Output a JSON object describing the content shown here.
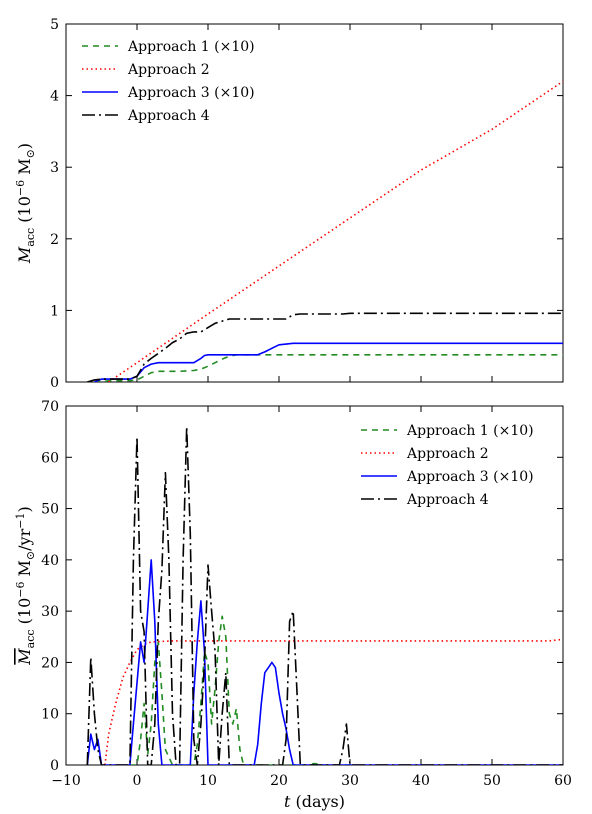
{
  "chart_data": [
    {
      "type": "line",
      "panel": "top",
      "ylabel": "M_acc (10^-6 M_sun)",
      "ylabel_parts": {
        "sym": "M",
        "sub": "acc",
        "open": " (10",
        "sup": "−6",
        "unit": " M",
        "sun": "⊙",
        "close": ")"
      },
      "xlim": [
        -10,
        60
      ],
      "ylim": [
        0,
        5
      ],
      "yticks": [
        "0",
        "1",
        "2",
        "3",
        "4",
        "5"
      ],
      "grid": false,
      "legend_position": "upper-left",
      "series": [
        {
          "name": "Approach 1 (×10)",
          "color": "#228b22",
          "dash": "dashed",
          "x": [
            -6,
            -5,
            -4,
            -3,
            -2,
            -1,
            0,
            1,
            2,
            3,
            4,
            6,
            8,
            9,
            10,
            11,
            12,
            13,
            14,
            15,
            20,
            30,
            40,
            50,
            60
          ],
          "y": [
            0.0,
            0.01,
            0.015,
            0.02,
            0.02,
            0.02,
            0.03,
            0.08,
            0.13,
            0.15,
            0.15,
            0.15,
            0.16,
            0.18,
            0.22,
            0.27,
            0.32,
            0.36,
            0.38,
            0.38,
            0.38,
            0.38,
            0.38,
            0.38,
            0.38
          ]
        },
        {
          "name": "Approach 2",
          "color": "#ff0000",
          "dash": "dotted",
          "x": [
            -4,
            0,
            10,
            20,
            30,
            40,
            50,
            60
          ],
          "y": [
            0.0,
            0.27,
            0.95,
            1.62,
            2.29,
            2.96,
            3.53,
            4.2
          ]
        },
        {
          "name": "Approach 3 (×10)",
          "color": "#0000ff",
          "dash": "solid",
          "x": [
            -6,
            -5,
            -1,
            0,
            1,
            2,
            3,
            8,
            9,
            9.5,
            10,
            17,
            18,
            19,
            20,
            22,
            60
          ],
          "y": [
            0.0,
            0.04,
            0.04,
            0.08,
            0.2,
            0.25,
            0.27,
            0.27,
            0.33,
            0.37,
            0.38,
            0.38,
            0.42,
            0.47,
            0.52,
            0.54,
            0.54
          ]
        },
        {
          "name": "Approach 4",
          "color": "#000000",
          "dash": "longdash",
          "x": [
            -7,
            -6,
            -5,
            -1,
            0,
            1,
            2,
            3,
            4,
            5,
            6,
            7,
            8,
            9,
            10,
            11,
            12,
            13,
            14,
            21,
            22,
            23,
            29,
            30,
            60
          ],
          "y": [
            0.0,
            0.03,
            0.04,
            0.04,
            0.08,
            0.25,
            0.33,
            0.4,
            0.47,
            0.55,
            0.6,
            0.68,
            0.7,
            0.7,
            0.76,
            0.82,
            0.85,
            0.88,
            0.88,
            0.88,
            0.94,
            0.95,
            0.95,
            0.96,
            0.96
          ]
        }
      ]
    },
    {
      "type": "line",
      "panel": "bottom",
      "xlabel": "t (days)",
      "xlabel_parts": {
        "sym": "t",
        "rest": " (days)"
      },
      "ylabel": "Mdot_acc (10^-6 M_sun/yr^-1)",
      "ylabel_parts": {
        "sym": "M",
        "dot": "˙",
        "sub": "acc",
        "open": " (10",
        "sup": "−6",
        "unit": " M",
        "sun": "⊙",
        "mid": "/yr",
        "sup2": "−1",
        "close": ")"
      },
      "xlim": [
        -10,
        60
      ],
      "ylim": [
        0,
        70
      ],
      "xticks": [
        "−10",
        "0",
        "10",
        "20",
        "30",
        "40",
        "50",
        "60"
      ],
      "yticks": [
        "0",
        "10",
        "20",
        "30",
        "40",
        "50",
        "60",
        "70"
      ],
      "grid": false,
      "legend_position": "upper-right",
      "series": [
        {
          "name": "Approach 1 (×10)",
          "color": "#228b22",
          "dash": "dashed",
          "x": [
            -1,
            0,
            0.5,
            1,
            1.5,
            2,
            2.5,
            3,
            3.5,
            4,
            5,
            6,
            7,
            8,
            8.5,
            9,
            9.5,
            10,
            10.5,
            11,
            11.5,
            12,
            12.5,
            13,
            13.5,
            14,
            14.5,
            15,
            16,
            24,
            25,
            26,
            27,
            30
          ],
          "y": [
            0,
            0,
            5,
            12,
            2,
            8,
            20,
            24,
            14,
            3,
            0,
            0,
            0,
            0,
            4,
            12,
            22,
            20,
            8,
            15,
            24,
            29,
            25,
            10,
            8,
            11,
            3,
            0,
            0,
            0,
            0.3,
            0,
            0,
            0
          ]
        },
        {
          "name": "Approach 2",
          "color": "#ff0000",
          "dash": "dotted",
          "x": [
            -4.5,
            -4,
            -3,
            -2,
            -1,
            0,
            1,
            2,
            5,
            10,
            20,
            30,
            40,
            50,
            58,
            60
          ],
          "y": [
            0,
            6,
            12,
            17,
            20,
            22.5,
            23.5,
            24,
            24.2,
            24.2,
            24.2,
            24.2,
            24.2,
            24.2,
            24.2,
            24.5
          ]
        },
        {
          "name": "Approach 3 (×10)",
          "color": "#0000ff",
          "dash": "solid",
          "x": [
            -7,
            -6.5,
            -6,
            -5.5,
            -5,
            -1,
            -0.5,
            0,
            0.5,
            1,
            1.5,
            2,
            2.5,
            3,
            3.5,
            7.5,
            8,
            8.5,
            9,
            9.5,
            10,
            16.5,
            17,
            17.5,
            18,
            18.5,
            19,
            19.5,
            20,
            20.5,
            21,
            21.5,
            22,
            60
          ],
          "y": [
            0,
            6,
            3,
            5,
            0,
            0,
            8,
            16,
            24,
            20,
            30,
            40,
            28,
            8,
            0,
            0,
            14,
            24,
            32,
            22,
            0,
            0,
            4,
            12,
            18,
            19,
            20,
            19,
            14,
            10,
            7,
            3,
            0,
            0
          ]
        },
        {
          "name": "Approach 4",
          "color": "#000000",
          "dash": "longdash",
          "x": [
            -7,
            -6.5,
            -6,
            -5.5,
            -5,
            -1,
            -0.5,
            0,
            0.5,
            1,
            1.5,
            2,
            2.5,
            3,
            3.5,
            4,
            4.5,
            5,
            5.5,
            6,
            6.5,
            7,
            7.5,
            8,
            8.5,
            9,
            9.5,
            10,
            10.5,
            11,
            11.5,
            12,
            12.5,
            13,
            20.5,
            21,
            21.5,
            22,
            22.5,
            23,
            28.5,
            29,
            29.5,
            30,
            60
          ],
          "y": [
            0,
            21,
            10,
            3,
            0,
            0,
            40,
            64,
            30,
            26,
            0,
            0,
            8,
            28,
            38,
            57,
            40,
            10,
            0,
            0,
            40,
            66,
            45,
            5,
            0,
            8,
            20,
            39,
            30,
            22,
            0,
            10,
            18,
            0,
            0,
            5,
            28,
            30,
            15,
            0,
            0,
            3,
            8,
            0,
            0
          ]
        }
      ]
    }
  ]
}
